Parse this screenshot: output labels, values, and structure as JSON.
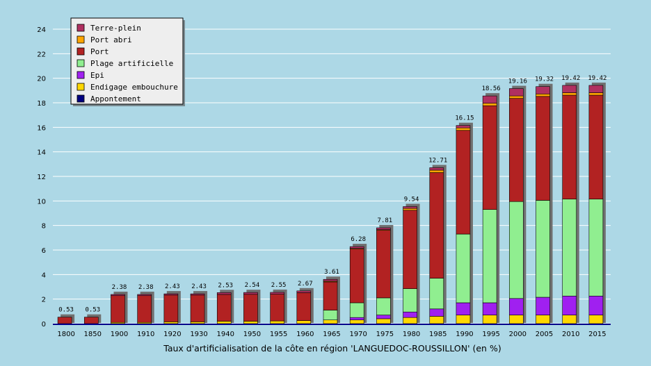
{
  "chart_data": {
    "type": "bar",
    "stacked": true,
    "xlabel": "Taux d'artificialisation de la côte en région 'LANGUEDOC-ROUSSILLON' (en %)",
    "ylim": [
      0,
      24
    ],
    "yticks": [
      0,
      2,
      4,
      6,
      8,
      10,
      12,
      14,
      16,
      18,
      20,
      22,
      24
    ],
    "grid": true,
    "legend_position": "top-left",
    "categories": [
      "1800",
      "1850",
      "1900",
      "1910",
      "1920",
      "1930",
      "1940",
      "1950",
      "1955",
      "1960",
      "1965",
      "1970",
      "1975",
      "1980",
      "1985",
      "1990",
      "1995",
      "2000",
      "2005",
      "2010",
      "2015"
    ],
    "totals": [
      0.53,
      0.53,
      2.38,
      2.38,
      2.43,
      2.43,
      2.53,
      2.54,
      2.55,
      2.67,
      3.61,
      6.28,
      7.81,
      9.54,
      12.71,
      16.15,
      18.56,
      19.16,
      19.32,
      19.42,
      19.42
    ],
    "total_labels": [
      "0.53",
      "0.53",
      "2.38",
      "2.38",
      "2.43",
      "2.43",
      "2.53",
      "2.54",
      "2.55",
      "2.67",
      "3.61",
      "6.28",
      "7.81",
      "9.54",
      "12.71",
      "16.15",
      "18.56",
      "19.16",
      "19.32",
      "19.42",
      "19.42"
    ],
    "series": [
      {
        "name": "Appontement",
        "color": "#000080",
        "values": [
          0,
          0,
          0,
          0,
          0,
          0,
          0,
          0,
          0,
          0,
          0,
          0,
          0,
          0,
          0,
          0,
          0,
          0,
          0,
          0,
          0
        ]
      },
      {
        "name": "Endigage embouchure",
        "color": "#ffd700",
        "values": [
          0,
          0,
          0.1,
          0.1,
          0.15,
          0.15,
          0.2,
          0.2,
          0.22,
          0.25,
          0.3,
          0.3,
          0.4,
          0.5,
          0.6,
          0.7,
          0.7,
          0.7,
          0.7,
          0.7,
          0.7
        ]
      },
      {
        "name": "Epi",
        "color": "#a020f0",
        "values": [
          0,
          0,
          0,
          0,
          0,
          0,
          0,
          0,
          0,
          0,
          0,
          0.2,
          0.3,
          0.45,
          0.6,
          1.0,
          1.0,
          1.35,
          1.45,
          1.55,
          1.55
        ]
      },
      {
        "name": "Plage artificielle",
        "color": "#90ee90",
        "values": [
          0,
          0,
          0,
          0,
          0,
          0,
          0,
          0,
          0,
          0,
          0.8,
          1.2,
          1.4,
          1.9,
          2.5,
          5.6,
          7.6,
          7.9,
          7.9,
          7.9,
          7.9
        ]
      },
      {
        "name": "Port",
        "color": "#b22222",
        "values": [
          0.53,
          0.53,
          2.18,
          2.18,
          2.18,
          2.18,
          2.18,
          2.19,
          2.18,
          2.27,
          2.3,
          4.38,
          5.51,
          6.39,
          8.61,
          8.45,
          8.46,
          8.41,
          8.47,
          8.47,
          8.47
        ]
      },
      {
        "name": "Port abri",
        "color": "#ffa500",
        "values": [
          0,
          0,
          0,
          0,
          0,
          0,
          0,
          0,
          0,
          0,
          0.06,
          0.05,
          0.05,
          0.15,
          0.2,
          0.2,
          0.2,
          0.2,
          0.2,
          0.2,
          0.2
        ]
      },
      {
        "name": "Terre-plein",
        "color": "#b03060",
        "values": [
          0,
          0,
          0.1,
          0.1,
          0.1,
          0.1,
          0.15,
          0.15,
          0.15,
          0.15,
          0.15,
          0.15,
          0.15,
          0.15,
          0.2,
          0.2,
          0.6,
          0.6,
          0.6,
          0.6,
          0.6
        ]
      }
    ],
    "legend": [
      "Terre-plein",
      "Port abri",
      "Port",
      "Plage artificielle",
      "Epi",
      "Endigage embouchure",
      "Appontement"
    ]
  }
}
